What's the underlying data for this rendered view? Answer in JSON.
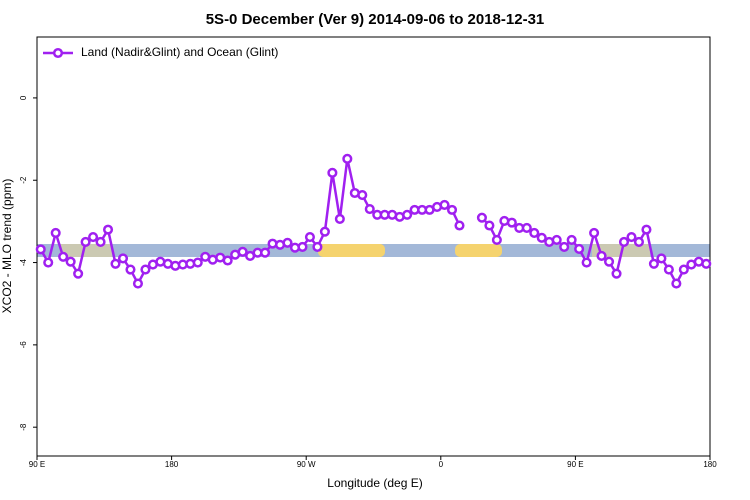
{
  "chart_data": {
    "type": "line",
    "title": "5S-0 December (Ver 9)   2014-09-06 to 2018-12-31",
    "x_label": "Longitude (deg E)",
    "y_label": "XCO2 - MLO trend (ppm)",
    "xlim": [
      90,
      540
    ],
    "xticks": [
      {
        "value": 90,
        "label": "90 E"
      },
      180,
      {
        "value": 270,
        "label": "90 W"
      },
      {
        "value": 360,
        "label": "0"
      },
      {
        "value": 450,
        "label": "90 E"
      },
      {
        "value": 540,
        "label": "180"
      }
    ],
    "ylim": [
      -8.7,
      1.48
    ],
    "yticks": [
      0,
      -2,
      -4,
      -6,
      -8
    ],
    "legend": "top-left",
    "x": [
      92.5,
      97.5,
      102.5,
      107.5,
      112.5,
      117.5,
      122.5,
      127.5,
      132.5,
      137.5,
      142.5,
      147.5,
      152.5,
      157.5,
      162.5,
      167.5,
      172.5,
      177.5,
      182.5,
      187.5,
      192.5,
      197.5,
      202.5,
      207.5,
      212.5,
      217.5,
      222.5,
      227.5,
      232.5,
      237.5,
      242.5,
      247.5,
      252.5,
      257.5,
      262.5,
      267.5,
      272.5,
      277.5,
      282.5,
      287.5,
      292.5,
      297.5,
      302.5,
      307.5,
      312.5,
      317.5,
      322.5,
      327.5,
      332.5,
      337.5,
      342.5,
      347.5,
      352.5,
      357.5,
      362.5,
      367.5,
      372.5,
      377.5,
      382.5,
      387.5,
      392.5,
      397.5,
      402.5,
      407.5,
      412.5,
      417.5,
      422.5,
      427.5,
      432.5,
      437.5,
      442.5,
      447.5,
      452.5,
      457.5,
      462.5,
      467.5,
      472.5,
      477.5,
      482.5,
      487.5,
      492.5,
      497.5,
      502.5,
      507.5,
      512.5,
      517.5,
      522.5,
      527.5,
      532.5,
      537.5
    ],
    "series": [
      {
        "name": "Land (Nadir&Glint) and Ocean (Glint)",
        "color": "#a020f0",
        "values": [
          -3.68,
          -4.0,
          -3.28,
          -3.86,
          -3.98,
          -4.27,
          -3.5,
          -3.38,
          -3.5,
          -3.2,
          -4.03,
          -3.9,
          -4.17,
          -4.51,
          -4.17,
          -4.05,
          -3.98,
          -4.03,
          -4.08,
          -4.05,
          -4.03,
          -4.0,
          -3.86,
          -3.93,
          -3.88,
          -3.95,
          -3.81,
          -3.74,
          -3.84,
          -3.76,
          -3.76,
          -3.54,
          -3.57,
          -3.52,
          -3.64,
          -3.62,
          -3.38,
          -3.62,
          -3.25,
          -1.82,
          -2.94,
          -1.48,
          -2.31,
          -2.36,
          -2.7,
          -2.84,
          -2.84,
          -2.84,
          -2.89,
          -2.84,
          -2.72,
          -2.72,
          -2.72,
          -2.65,
          -2.6,
          -2.72,
          -3.1,
          null,
          null,
          -2.91,
          -3.1,
          -3.45,
          -2.99,
          -3.03,
          -3.16,
          -3.16,
          -3.28,
          -3.4,
          -3.5,
          -3.45,
          -3.62,
          -3.45,
          -3.67,
          -4.0,
          -3.28,
          -3.84,
          -3.98,
          -4.27,
          -3.5,
          -3.38,
          -3.5,
          -3.2,
          -4.03,
          -3.9,
          -4.17,
          -4.51,
          -4.17,
          -4.05,
          -3.98,
          -4.03
        ]
      }
    ]
  }
}
